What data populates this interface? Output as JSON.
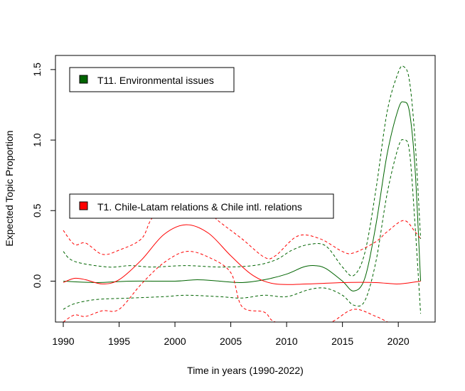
{
  "chart_data": {
    "type": "line",
    "xlabel": "Time in years (1990-2022)",
    "ylabel": "Expected Topic Proportion",
    "xlim": [
      1989.3,
      2023.3
    ],
    "ylim": [
      -0.29,
      1.6
    ],
    "x_ticks": [
      1990,
      1995,
      2000,
      2005,
      2010,
      2015,
      2020
    ],
    "y_ticks": [
      0.0,
      0.5,
      1.0,
      1.5
    ],
    "y_tick_labels": [
      "0.0",
      "0.5",
      "1.0",
      "1.5"
    ],
    "grid": false,
    "line_styles": {
      "estimate": "solid",
      "confidence_bounds": "dashed"
    },
    "series": [
      {
        "name": "T11. Environmental issues",
        "color": "#006400",
        "legend_position": "top-left",
        "estimate": [
          [
            1990,
            0.0
          ],
          [
            1993,
            -0.01
          ],
          [
            1996,
            0.0
          ],
          [
            2000,
            0.0
          ],
          [
            2002,
            0.01
          ],
          [
            2004,
            0.0
          ],
          [
            2006,
            -0.01
          ],
          [
            2008,
            0.01
          ],
          [
            2010,
            0.05
          ],
          [
            2011.5,
            0.1
          ],
          [
            2012.5,
            0.11
          ],
          [
            2013.5,
            0.09
          ],
          [
            2015,
            0.0
          ],
          [
            2016,
            -0.07
          ],
          [
            2017,
            0.02
          ],
          [
            2018,
            0.4
          ],
          [
            2019,
            0.9
          ],
          [
            2020,
            1.22
          ],
          [
            2020.5,
            1.27
          ],
          [
            2021,
            1.2
          ],
          [
            2021.5,
            0.8
          ],
          [
            2022,
            0.0
          ]
        ],
        "upper": [
          [
            1990,
            0.21
          ],
          [
            1991,
            0.14
          ],
          [
            1994,
            0.1
          ],
          [
            1996,
            0.11
          ],
          [
            1998,
            0.1
          ],
          [
            2001,
            0.11
          ],
          [
            2004,
            0.1
          ],
          [
            2007,
            0.11
          ],
          [
            2009,
            0.15
          ],
          [
            2010.5,
            0.22
          ],
          [
            2012,
            0.26
          ],
          [
            2013.5,
            0.25
          ],
          [
            2015,
            0.1
          ],
          [
            2016,
            0.04
          ],
          [
            2017,
            0.2
          ],
          [
            2018,
            0.65
          ],
          [
            2019,
            1.2
          ],
          [
            2020,
            1.48
          ],
          [
            2020.5,
            1.52
          ],
          [
            2021,
            1.42
          ],
          [
            2021.5,
            1.0
          ],
          [
            2022,
            0.3
          ]
        ],
        "lower": [
          [
            1990,
            -0.2
          ],
          [
            1991,
            -0.16
          ],
          [
            1993,
            -0.13
          ],
          [
            1996,
            -0.12
          ],
          [
            1999,
            -0.11
          ],
          [
            2001,
            -0.1
          ],
          [
            2004,
            -0.11
          ],
          [
            2006,
            -0.12
          ],
          [
            2008,
            -0.1
          ],
          [
            2010,
            -0.11
          ],
          [
            2012,
            -0.06
          ],
          [
            2013.5,
            -0.05
          ],
          [
            2015,
            -0.1
          ],
          [
            2016,
            -0.17
          ],
          [
            2017,
            -0.14
          ],
          [
            2018,
            0.14
          ],
          [
            2019,
            0.62
          ],
          [
            2020,
            0.95
          ],
          [
            2020.5,
            1.0
          ],
          [
            2021,
            0.92
          ],
          [
            2021.5,
            0.4
          ],
          [
            2022,
            -0.23
          ]
        ]
      },
      {
        "name": "T1. Chile-Latam relations & Chile intl. relations",
        "color": "#ff0000",
        "legend_position": "middle-left",
        "estimate": [
          [
            1990,
            -0.01
          ],
          [
            1991,
            0.02
          ],
          [
            1992,
            0.01
          ],
          [
            1993.5,
            -0.02
          ],
          [
            1995,
            0.01
          ],
          [
            1997,
            0.15
          ],
          [
            1999,
            0.33
          ],
          [
            2001,
            0.4
          ],
          [
            2003,
            0.34
          ],
          [
            2005,
            0.18
          ],
          [
            2007,
            0.04
          ],
          [
            2009,
            -0.02
          ],
          [
            2012,
            -0.02
          ],
          [
            2015,
            -0.01
          ],
          [
            2018,
            -0.01
          ],
          [
            2020,
            -0.02
          ],
          [
            2022,
            0.0
          ]
        ],
        "upper": [
          [
            1990,
            0.36
          ],
          [
            1991,
            0.26
          ],
          [
            1992,
            0.27
          ],
          [
            1993.5,
            0.19
          ],
          [
            1995,
            0.22
          ],
          [
            1997,
            0.3
          ],
          [
            1998,
            0.45
          ],
          [
            2000,
            0.56
          ],
          [
            2002,
            0.55
          ],
          [
            2004,
            0.42
          ],
          [
            2006,
            0.3
          ],
          [
            2008,
            0.17
          ],
          [
            2009,
            0.18
          ],
          [
            2011,
            0.32
          ],
          [
            2013,
            0.3
          ],
          [
            2015,
            0.21
          ],
          [
            2016,
            0.2
          ],
          [
            2018,
            0.28
          ],
          [
            2019,
            0.35
          ],
          [
            2020.5,
            0.43
          ],
          [
            2021.5,
            0.35
          ],
          [
            2022,
            0.3
          ]
        ],
        "lower": [
          [
            1990,
            -0.29
          ],
          [
            1991,
            -0.24
          ],
          [
            1992,
            -0.25
          ],
          [
            1993.5,
            -0.21
          ],
          [
            1995,
            -0.2
          ],
          [
            1997,
            -0.02
          ],
          [
            1999,
            0.13
          ],
          [
            2001,
            0.21
          ],
          [
            2003,
            0.17
          ],
          [
            2005,
            0.06
          ],
          [
            2006,
            -0.18
          ],
          [
            2008,
            -0.22
          ],
          [
            2009,
            -0.29
          ],
          [
            2012,
            -0.32
          ],
          [
            2014,
            -0.29
          ],
          [
            2016,
            -0.2
          ],
          [
            2018,
            -0.25
          ],
          [
            2020,
            -0.32
          ],
          [
            2022,
            -0.32
          ]
        ]
      }
    ]
  }
}
